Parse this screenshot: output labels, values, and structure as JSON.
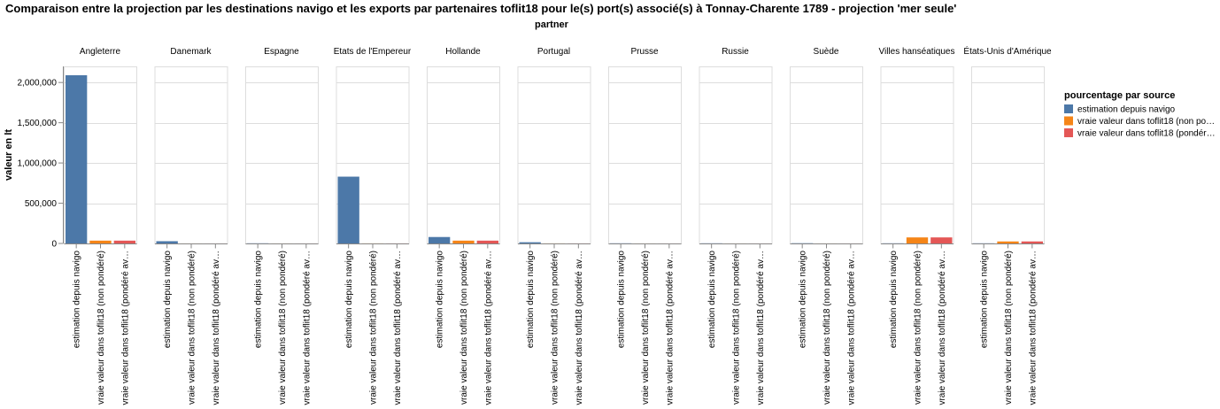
{
  "chart_data": {
    "type": "bar",
    "title": "Comparaison entre la projection par les destinations navigo et les exports par partenaires toflit18 pour le(s) port(s) associé(s) à Tonnay-Charente 1789 - projection 'mer seule'",
    "facet_title": "partner",
    "ylabel": "valeur en lt",
    "ylim": [
      0,
      2200000
    ],
    "yticks": [
      0,
      500000,
      1000000,
      1500000,
      2000000
    ],
    "ytick_labels": [
      "0",
      "500,000",
      "1,000,000",
      "1,500,000",
      "2,000,000"
    ],
    "categories": [
      "estimation depuis navigo",
      "vraie valeur dans toflit18 (non pondéré)",
      "vraie valeur dans toflit18 (pondéré av…"
    ],
    "legend": {
      "title": "pourcentage par source",
      "entries": [
        {
          "label": "estimation depuis navigo",
          "color": "#4c78a8"
        },
        {
          "label": "vraie valeur dans toflit18 (non po…",
          "color": "#f58518"
        },
        {
          "label": "vraie valeur dans toflit18 (pondér…",
          "color": "#e45756"
        }
      ]
    },
    "colors": [
      "#4c78a8",
      "#f58518",
      "#e45756"
    ],
    "partners": [
      {
        "name": "Angleterre",
        "values": [
          2090000,
          35000,
          35000
        ]
      },
      {
        "name": "Danemark",
        "values": [
          28000,
          500,
          500
        ]
      },
      {
        "name": "Espagne",
        "values": [
          2000,
          500,
          500
        ]
      },
      {
        "name": "Etats de l'Empereur",
        "values": [
          830000,
          1000,
          1000
        ]
      },
      {
        "name": "Hollande",
        "values": [
          80000,
          35000,
          35000
        ]
      },
      {
        "name": "Portugal",
        "values": [
          15000,
          1000,
          1000
        ]
      },
      {
        "name": "Prusse",
        "values": [
          2000,
          500,
          500
        ]
      },
      {
        "name": "Russie",
        "values": [
          2000,
          500,
          500
        ]
      },
      {
        "name": "Suède",
        "values": [
          3000,
          500,
          500
        ]
      },
      {
        "name": "Villes hanséatiques",
        "values": [
          2000,
          75000,
          75000
        ]
      },
      {
        "name": "États-Unis d'Amérique",
        "values": [
          2000,
          25000,
          25000
        ]
      }
    ]
  }
}
